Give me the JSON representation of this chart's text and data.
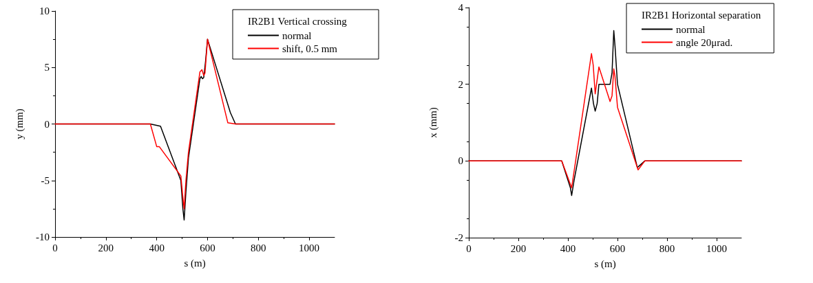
{
  "chart_data": [
    {
      "type": "line",
      "legend_title": "IR2B1 Vertical crossing",
      "xlabel": "s (m)",
      "ylabel": "y (mm)",
      "xlim": [
        0,
        1100
      ],
      "xticks": [
        0,
        200,
        400,
        600,
        800,
        1000
      ],
      "ylim": [
        -10,
        10
      ],
      "yticks": [
        -10,
        -5,
        0,
        5,
        10
      ],
      "grid": false,
      "legend": "top right",
      "marker": "none",
      "line_style": "solid",
      "series": [
        {
          "name": "normal",
          "color": "#000000",
          "x": [
            0,
            375,
            415,
            495,
            503,
            508,
            515,
            525,
            570,
            575,
            580,
            585,
            592,
            600,
            690,
            710,
            1100
          ],
          "values": [
            0,
            0,
            -0.2,
            -5,
            -7.5,
            -8.5,
            -6,
            -3,
            4,
            4.2,
            4,
            4.1,
            5.5,
            7.5,
            1,
            0,
            0
          ]
        },
        {
          "name": "shift, 0.5 mm",
          "color": "#ff0000",
          "x": [
            0,
            375,
            400,
            410,
            495,
            503,
            508,
            515,
            525,
            570,
            578,
            585,
            590,
            600,
            680,
            710,
            1100
          ],
          "values": [
            0,
            0,
            -2,
            -2,
            -4.6,
            -6.5,
            -7.5,
            -5,
            -2.5,
            4.6,
            4.8,
            4.3,
            4.5,
            7.5,
            0.1,
            0,
            0
          ]
        }
      ]
    },
    {
      "type": "line",
      "legend_title": "IR2B1 Horizontal separation",
      "xlabel": "s (m)",
      "ylabel": "x (mm)",
      "xlim": [
        0,
        1100
      ],
      "xticks": [
        0,
        200,
        400,
        600,
        800,
        1000
      ],
      "ylim": [
        -2,
        4
      ],
      "yticks": [
        -2,
        0,
        2,
        4
      ],
      "grid": false,
      "legend": "top right",
      "marker": "none",
      "line_style": "solid",
      "series": [
        {
          "name": "normal",
          "color": "#000000",
          "x": [
            0,
            375,
            400,
            410,
            415,
            425,
            495,
            503,
            510,
            518,
            525,
            570,
            578,
            585,
            590,
            600,
            680,
            710,
            1100
          ],
          "values": [
            0,
            0,
            -0.5,
            -0.7,
            -0.9,
            -0.5,
            1.9,
            1.5,
            1.3,
            1.5,
            2,
            2,
            2.3,
            3.4,
            3,
            2,
            -0.17,
            0,
            0
          ]
        },
        {
          "name": "angle 20μrad.",
          "color": "#ff0000",
          "x": [
            0,
            375,
            415,
            495,
            502,
            510,
            525,
            570,
            578,
            585,
            590,
            600,
            683,
            710,
            1100
          ],
          "values": [
            0,
            0,
            -0.7,
            2.8,
            2.5,
            1.75,
            2.45,
            1.55,
            1.7,
            2.4,
            2.2,
            1.4,
            -0.23,
            0,
            0
          ]
        }
      ]
    }
  ]
}
